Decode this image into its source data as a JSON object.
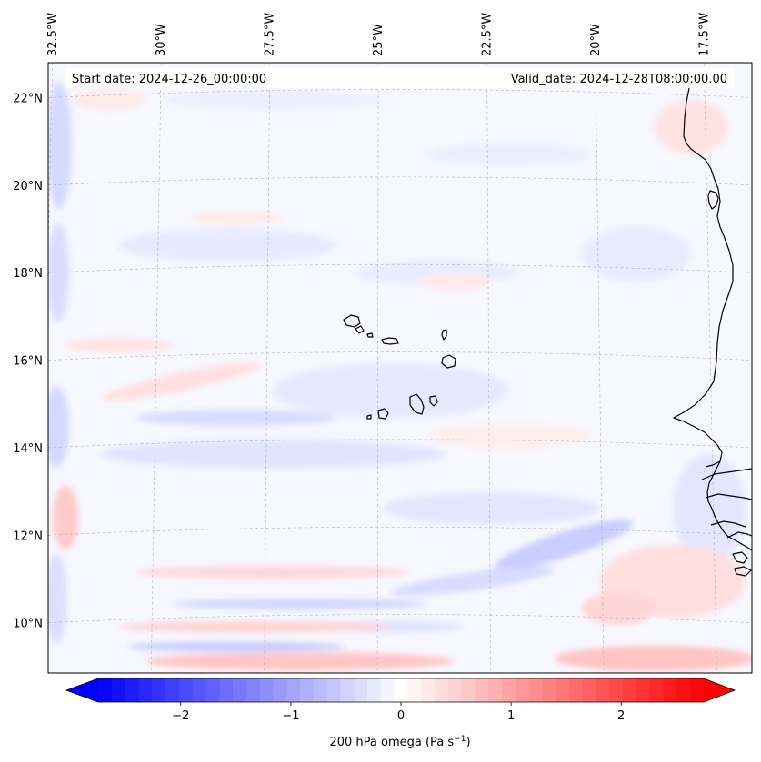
{
  "map": {
    "start_date_label": "Start date: 2024-12-26_00:00:00",
    "valid_date_label": "Valid_date: 2024-12-28T08:00:00.00",
    "field": "200 hPa omega",
    "lon_ticks": [
      {
        "value": -32.5,
        "label": "32.5°W"
      },
      {
        "value": -30.0,
        "label": "30°W"
      },
      {
        "value": -27.5,
        "label": "27.5°W"
      },
      {
        "value": -25.0,
        "label": "25°W"
      },
      {
        "value": -22.5,
        "label": "22.5°W"
      },
      {
        "value": -20.0,
        "label": "20°W"
      },
      {
        "value": -17.5,
        "label": "17.5°W"
      }
    ],
    "lat_ticks": [
      {
        "value": 22,
        "label": "22°N"
      },
      {
        "value": 20,
        "label": "20°N"
      },
      {
        "value": 18,
        "label": "18°N"
      },
      {
        "value": 16,
        "label": "16°N"
      },
      {
        "value": 14,
        "label": "14°N"
      },
      {
        "value": 12,
        "label": "12°N"
      },
      {
        "value": 10,
        "label": "10°N"
      }
    ],
    "extent": {
      "lon_min": -32.6,
      "lon_max": -16.4,
      "lat_min": 8.85,
      "lat_max": 22.8
    }
  },
  "colorbar": {
    "label_main": "200 hPa omega (Pa s",
    "label_exp": "−1",
    "label_close": ")",
    "vmin": -2.75,
    "vmax": 2.75,
    "levels": 45,
    "ticks": [
      {
        "value": -2,
        "label": "−2"
      },
      {
        "value": -1,
        "label": "−1"
      },
      {
        "value": 0,
        "label": "0"
      },
      {
        "value": 1,
        "label": "1"
      },
      {
        "value": 2,
        "label": "2"
      }
    ],
    "min_color": "#0000ff",
    "mid_color": "#ffffff",
    "max_color": "#ff0000",
    "extend": "both"
  },
  "colors": {
    "grid": "#b0b0b0",
    "coast": "#000000",
    "ocean_base": "#f7f7ff"
  }
}
